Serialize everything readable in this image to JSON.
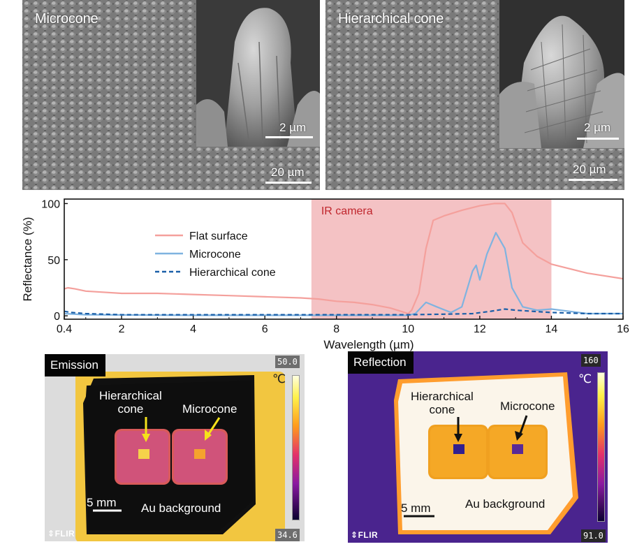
{
  "sem": {
    "left": {
      "label": "Microcone",
      "inset_scale": "2 µm",
      "main_scale": "20 µm"
    },
    "right": {
      "label": "Hierarchical cone",
      "inset_scale": "2 µm",
      "main_scale": "20 µm"
    }
  },
  "chart_data": {
    "type": "line",
    "xlabel": "Wavelength (µm)",
    "ylabel": "Reflectance (%)",
    "xlim": [
      0.4,
      16
    ],
    "ylim": [
      -3,
      104
    ],
    "xticks": [
      0.4,
      2,
      4,
      6,
      8,
      10,
      12,
      14,
      16
    ],
    "yticks": [
      0,
      50,
      100
    ],
    "grid": false,
    "legend_placement": "upper-left",
    "shaded_region": {
      "label": "IR camera",
      "x_range": [
        7.3,
        14
      ],
      "color": "#f4c2c4"
    },
    "series": [
      {
        "name": "Flat surface",
        "color": "#f4a09c",
        "style": "solid",
        "points": [
          [
            0.4,
            24
          ],
          [
            0.5,
            25
          ],
          [
            0.7,
            24
          ],
          [
            1,
            22
          ],
          [
            2,
            20
          ],
          [
            3,
            20
          ],
          [
            4,
            19
          ],
          [
            5,
            18
          ],
          [
            6,
            17
          ],
          [
            7,
            16
          ],
          [
            7.5,
            15
          ],
          [
            8,
            13
          ],
          [
            8.5,
            12
          ],
          [
            9,
            10
          ],
          [
            9.5,
            7
          ],
          [
            9.8,
            4
          ],
          [
            10,
            2
          ],
          [
            10.1,
            5
          ],
          [
            10.3,
            20
          ],
          [
            10.5,
            60
          ],
          [
            10.7,
            85
          ],
          [
            11,
            89
          ],
          [
            11.5,
            94
          ],
          [
            12,
            98
          ],
          [
            12.4,
            100
          ],
          [
            12.7,
            100
          ],
          [
            12.9,
            92
          ],
          [
            13.2,
            65
          ],
          [
            13.6,
            53
          ],
          [
            14,
            46
          ],
          [
            15,
            38
          ],
          [
            16,
            33
          ]
        ]
      },
      {
        "name": "Microcone",
        "color": "#7fb3e0",
        "style": "solid",
        "points": [
          [
            0.4,
            2
          ],
          [
            1,
            1
          ],
          [
            4,
            0.5
          ],
          [
            8,
            0.5
          ],
          [
            10,
            0.5
          ],
          [
            10.2,
            2
          ],
          [
            10.5,
            12
          ],
          [
            10.8,
            8
          ],
          [
            11.2,
            3
          ],
          [
            11.5,
            8
          ],
          [
            11.8,
            40
          ],
          [
            11.9,
            45
          ],
          [
            12.0,
            32
          ],
          [
            12.2,
            55
          ],
          [
            12.45,
            74
          ],
          [
            12.7,
            60
          ],
          [
            12.9,
            25
          ],
          [
            13.2,
            8
          ],
          [
            13.6,
            5
          ],
          [
            14,
            6
          ],
          [
            14.5,
            4
          ],
          [
            15,
            2
          ],
          [
            16,
            2
          ]
        ]
      },
      {
        "name": "Hierarchical cone",
        "color": "#1a5fa8",
        "style": "dashed",
        "points": [
          [
            0.4,
            4
          ],
          [
            0.6,
            3
          ],
          [
            1,
            2
          ],
          [
            2,
            1
          ],
          [
            4,
            1
          ],
          [
            6,
            1
          ],
          [
            8,
            1
          ],
          [
            9,
            1
          ],
          [
            10,
            1
          ],
          [
            11,
            1.5
          ],
          [
            11.8,
            2
          ],
          [
            12.3,
            4
          ],
          [
            12.7,
            6
          ],
          [
            13,
            5
          ],
          [
            14,
            3
          ],
          [
            15,
            2
          ],
          [
            16,
            2
          ]
        ]
      }
    ]
  },
  "ir": {
    "emission": {
      "tag": "Emission",
      "max": "50.0",
      "min": "34.6",
      "unit": "℃",
      "hierarchical_label_line1": "Hierarchical",
      "hierarchical_label_line2": "cone",
      "microcone_label": "Microcone",
      "scale": "5 mm",
      "background_label": "Au background",
      "brand": "FLIR"
    },
    "reflection": {
      "tag": "Reflection",
      "max": "160",
      "min": "91.0",
      "unit": "℃",
      "hierarchical_label_line1": "Hierarchical",
      "hierarchical_label_line2": "cone",
      "microcone_label": "Microcone",
      "scale": "5 mm",
      "background_label": "Au background",
      "brand": "FLIR"
    }
  }
}
